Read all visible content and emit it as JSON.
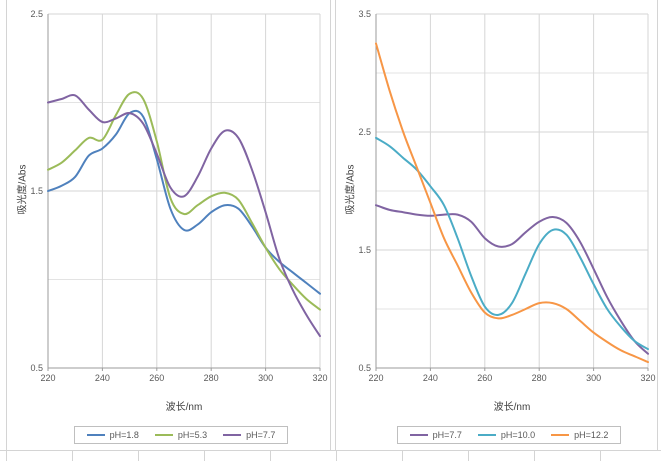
{
  "chart_data": [
    {
      "type": "line",
      "title": "",
      "xlabel": "波长/nm",
      "ylabel": "吸光度/Abs",
      "xlim": [
        220,
        320
      ],
      "ylim": [
        0.5,
        2.5
      ],
      "xticks": [
        220,
        240,
        260,
        280,
        300,
        320
      ],
      "yticks": [
        0.5,
        1.5,
        2.5
      ],
      "grid_step_y": 0.5,
      "grid": true,
      "legend_position": "bottom",
      "x": [
        220,
        225,
        230,
        235,
        240,
        245,
        250,
        255,
        260,
        265,
        270,
        275,
        280,
        285,
        290,
        295,
        300,
        305,
        310,
        315,
        320
      ],
      "series": [
        {
          "name": "pH=1.8",
          "color": "#4F81BD",
          "values": [
            1.5,
            1.53,
            1.58,
            1.7,
            1.74,
            1.82,
            1.94,
            1.92,
            1.68,
            1.4,
            1.28,
            1.31,
            1.38,
            1.42,
            1.4,
            1.3,
            1.18,
            1.1,
            1.04,
            0.98,
            0.92
          ]
        },
        {
          "name": "pH=5.3",
          "color": "#9BBB59",
          "values": [
            1.62,
            1.66,
            1.73,
            1.8,
            1.79,
            1.93,
            2.05,
            2.02,
            1.78,
            1.46,
            1.37,
            1.42,
            1.47,
            1.49,
            1.45,
            1.32,
            1.18,
            1.06,
            0.97,
            0.89,
            0.83
          ]
        },
        {
          "name": "pH=7.7",
          "color": "#8064A2",
          "values": [
            2.0,
            2.02,
            2.04,
            1.96,
            1.89,
            1.91,
            1.94,
            1.88,
            1.71,
            1.52,
            1.47,
            1.58,
            1.74,
            1.84,
            1.8,
            1.62,
            1.38,
            1.12,
            0.94,
            0.8,
            0.68
          ]
        }
      ]
    },
    {
      "type": "line",
      "title": "",
      "xlabel": "波长/nm",
      "ylabel": "吸光度/Abs",
      "xlim": [
        220,
        320
      ],
      "ylim": [
        0.5,
        3.5
      ],
      "xticks": [
        220,
        240,
        260,
        280,
        300,
        320
      ],
      "yticks": [
        0.5,
        1.5,
        2.5,
        3.5
      ],
      "grid_step_y": 0.5,
      "grid": true,
      "legend_position": "bottom",
      "x": [
        220,
        225,
        230,
        235,
        240,
        245,
        250,
        255,
        260,
        265,
        270,
        275,
        280,
        285,
        290,
        295,
        300,
        305,
        310,
        315,
        320
      ],
      "series": [
        {
          "name": "pH=7.7",
          "color": "#8064A2",
          "values": [
            1.88,
            1.84,
            1.82,
            1.8,
            1.79,
            1.8,
            1.8,
            1.74,
            1.6,
            1.53,
            1.55,
            1.65,
            1.74,
            1.78,
            1.73,
            1.57,
            1.34,
            1.1,
            0.9,
            0.73,
            0.62
          ]
        },
        {
          "name": "pH=10.0",
          "color": "#4BACC6",
          "values": [
            2.45,
            2.38,
            2.28,
            2.18,
            2.04,
            1.88,
            1.6,
            1.28,
            1.02,
            0.95,
            1.05,
            1.3,
            1.55,
            1.67,
            1.63,
            1.44,
            1.21,
            1.0,
            0.85,
            0.73,
            0.66
          ]
        },
        {
          "name": "pH=12.2",
          "color": "#F79646",
          "values": [
            3.25,
            2.85,
            2.5,
            2.2,
            1.9,
            1.6,
            1.37,
            1.14,
            0.97,
            0.92,
            0.95,
            1.0,
            1.05,
            1.05,
            1.0,
            0.9,
            0.8,
            0.72,
            0.65,
            0.6,
            0.55
          ]
        }
      ]
    }
  ]
}
